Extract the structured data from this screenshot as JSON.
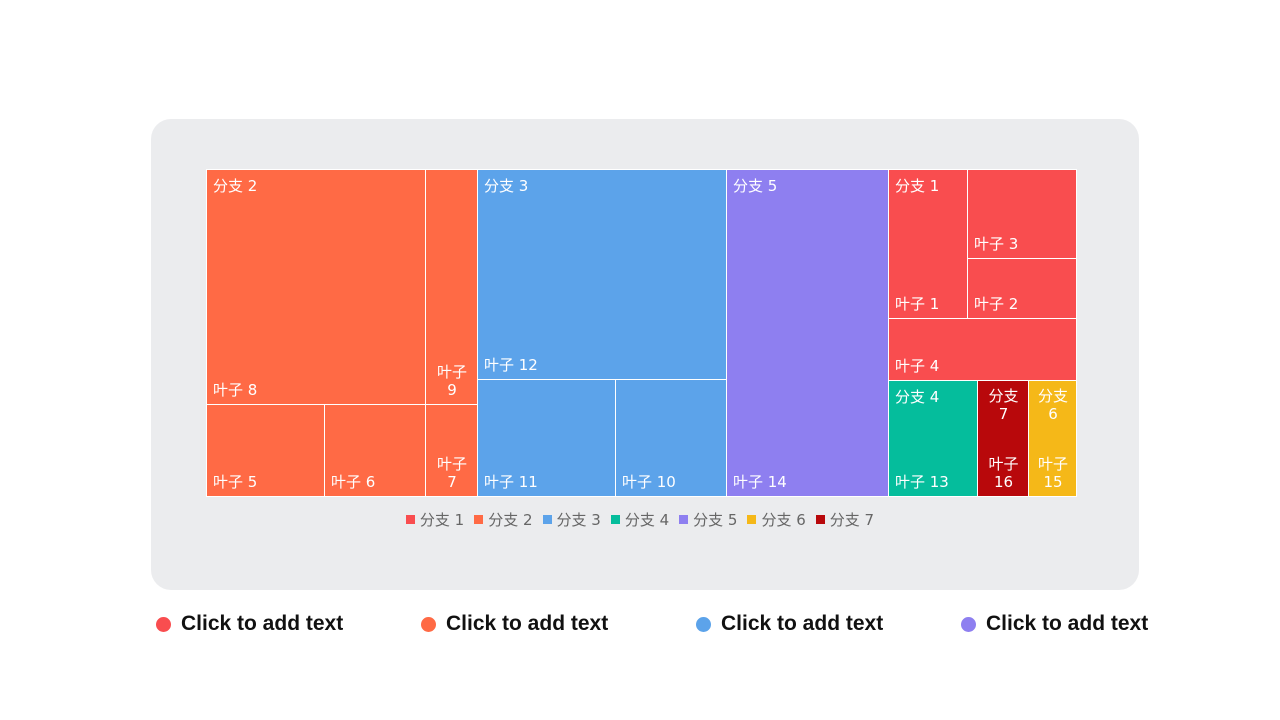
{
  "chart_data": {
    "type": "treemap",
    "branches": [
      {
        "name": "分支 1",
        "color": "#f94d4f",
        "leaves": [
          {
            "name": "叶子 1",
            "value": 16
          },
          {
            "name": "叶子 2",
            "value": 10
          },
          {
            "name": "叶子 3",
            "value": 17
          },
          {
            "name": "叶子 4",
            "value": 19
          }
        ]
      },
      {
        "name": "分支 2",
        "color": "#ff6a45",
        "leaves": [
          {
            "name": "叶子 8",
            "value": 87
          },
          {
            "name": "叶子 9",
            "value": 20
          },
          {
            "name": "叶子 5",
            "value": 18
          },
          {
            "name": "叶子 6",
            "value": 16
          },
          {
            "name": "叶子 7",
            "value": 8
          }
        ]
      },
      {
        "name": "分支 3",
        "color": "#5ca3ea",
        "leaves": [
          {
            "name": "叶子 12",
            "value": 86
          },
          {
            "name": "叶子 11",
            "value": 26
          },
          {
            "name": "叶子 10",
            "value": 21
          }
        ]
      },
      {
        "name": "分支 4",
        "color": "#05bd9c",
        "leaves": [
          {
            "name": "叶子 13",
            "value": 17
          }
        ]
      },
      {
        "name": "分支 5",
        "color": "#8e7ff0",
        "leaves": [
          {
            "name": "叶子 14",
            "value": 87
          }
        ]
      },
      {
        "name": "分支 6",
        "color": "#f5b818",
        "leaves": [
          {
            "name": "叶子 15",
            "value": 9
          }
        ]
      },
      {
        "name": "分支 7",
        "color": "#b8080b",
        "leaves": [
          {
            "name": "叶子 16",
            "value": 9
          }
        ]
      }
    ],
    "legend": [
      "分支 1",
      "分支 2",
      "分支 3",
      "分支 4",
      "分支 5",
      "分支 6",
      "分支 7"
    ],
    "legend_colors": [
      "#f94d4f",
      "#ff6a45",
      "#5ca3ea",
      "#05bd9c",
      "#8e7ff0",
      "#f5b818",
      "#b8080b"
    ],
    "legend_position": "bottom"
  },
  "footer_items": [
    {
      "text": "Click to add text",
      "color": "#f94d4f"
    },
    {
      "text": "Click to add text",
      "color": "#ff6a45"
    },
    {
      "text": "Click to add text",
      "color": "#5ca3ea"
    },
    {
      "text": "Click to add text",
      "color": "#8e7ff0"
    }
  ]
}
